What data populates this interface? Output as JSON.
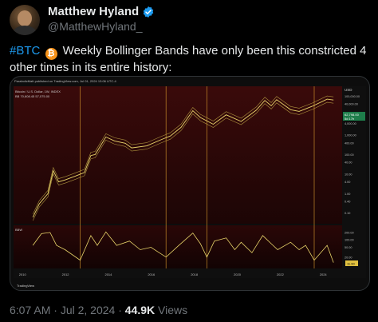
{
  "tweet": {
    "author_name": "Matthew Hyland",
    "handle": "@MatthewHyland_",
    "hashtag": "#BTC",
    "emoji_label": "₿",
    "text_line": " Weekly Bollinger Bands have only been this constricted 4 other times in its entire history:",
    "time": "6:07 AM",
    "sep1": " · ",
    "date": "Jul 2, 2024",
    "sep2": " · ",
    "views_count": "44.9K",
    "views_label": " Views",
    "verified_color": "#1d9bf0",
    "hashtag_color": "#1d9bf0"
  },
  "chart_data": {
    "type": "line",
    "header_text": "ParabolicMatt published on TradingView.com, Jul 01, 2024 13:06 UTC-4",
    "symbol": "Bitcoin / U.S. Dollar, 1W, INDEX",
    "bb_label": "BB 70,608.45 57,075.00",
    "price_tag": "62,798.00",
    "price_tag2": "5d 17h",
    "usd_label": "USD",
    "x_ticks": [
      "2010",
      "2012",
      "2014",
      "2016",
      "2018",
      "2020",
      "2022",
      "2024"
    ],
    "y_ticks": [
      "100,000.00",
      "40,000.00",
      "10,000.00",
      "4,000.00",
      "1,000.00",
      "400.00",
      "100.00",
      "40.00",
      "10.00",
      "4.00",
      "1.00",
      "0.40",
      "0.10"
    ],
    "lower_label": "BBW",
    "lower_y_ticks": [
      "200.00",
      "100.00",
      "50.00",
      "20.00"
    ],
    "lower_value_tag": "11.90",
    "brand": "TradingView",
    "constriction_years": [
      2012.7,
      2016.7,
      2018.6,
      2023.6
    ],
    "price_series": [
      {
        "x": 2010.5,
        "y": 0.06
      },
      {
        "x": 2010.8,
        "y": 0.3
      },
      {
        "x": 2011.2,
        "y": 1
      },
      {
        "x": 2011.45,
        "y": 15
      },
      {
        "x": 2011.7,
        "y": 4
      },
      {
        "x": 2012.0,
        "y": 5
      },
      {
        "x": 2012.5,
        "y": 8
      },
      {
        "x": 2012.9,
        "y": 12
      },
      {
        "x": 2013.2,
        "y": 90
      },
      {
        "x": 2013.4,
        "y": 100
      },
      {
        "x": 2013.9,
        "y": 800
      },
      {
        "x": 2014.3,
        "y": 500
      },
      {
        "x": 2014.8,
        "y": 380
      },
      {
        "x": 2015.1,
        "y": 220
      },
      {
        "x": 2015.8,
        "y": 280
      },
      {
        "x": 2016.5,
        "y": 600
      },
      {
        "x": 2016.9,
        "y": 900
      },
      {
        "x": 2017.4,
        "y": 2500
      },
      {
        "x": 2017.95,
        "y": 18000
      },
      {
        "x": 2018.3,
        "y": 8000
      },
      {
        "x": 2018.9,
        "y": 3600
      },
      {
        "x": 2019.5,
        "y": 11000
      },
      {
        "x": 2020.2,
        "y": 5000
      },
      {
        "x": 2020.9,
        "y": 19000
      },
      {
        "x": 2021.3,
        "y": 60000
      },
      {
        "x": 2021.6,
        "y": 32000
      },
      {
        "x": 2021.85,
        "y": 66000
      },
      {
        "x": 2022.5,
        "y": 20000
      },
      {
        "x": 2022.9,
        "y": 16500
      },
      {
        "x": 2023.5,
        "y": 30000
      },
      {
        "x": 2024.2,
        "y": 70000
      },
      {
        "x": 2024.5,
        "y": 62798
      }
    ],
    "bbw_series": [
      {
        "x": 2010.5,
        "y": 60
      },
      {
        "x": 2010.9,
        "y": 180
      },
      {
        "x": 2011.3,
        "y": 200
      },
      {
        "x": 2011.6,
        "y": 60
      },
      {
        "x": 2012.0,
        "y": 40
      },
      {
        "x": 2012.7,
        "y": 15
      },
      {
        "x": 2013.2,
        "y": 150
      },
      {
        "x": 2013.5,
        "y": 60
      },
      {
        "x": 2013.9,
        "y": 210
      },
      {
        "x": 2014.4,
        "y": 60
      },
      {
        "x": 2015.0,
        "y": 90
      },
      {
        "x": 2015.5,
        "y": 40
      },
      {
        "x": 2016.0,
        "y": 50
      },
      {
        "x": 2016.7,
        "y": 20
      },
      {
        "x": 2017.3,
        "y": 60
      },
      {
        "x": 2017.95,
        "y": 190
      },
      {
        "x": 2018.3,
        "y": 70
      },
      {
        "x": 2018.6,
        "y": 20
      },
      {
        "x": 2018.95,
        "y": 90
      },
      {
        "x": 2019.5,
        "y": 120
      },
      {
        "x": 2019.9,
        "y": 40
      },
      {
        "x": 2020.2,
        "y": 80
      },
      {
        "x": 2020.7,
        "y": 30
      },
      {
        "x": 2021.2,
        "y": 150
      },
      {
        "x": 2021.6,
        "y": 70
      },
      {
        "x": 2021.9,
        "y": 40
      },
      {
        "x": 2022.5,
        "y": 80
      },
      {
        "x": 2022.9,
        "y": 40
      },
      {
        "x": 2023.2,
        "y": 60
      },
      {
        "x": 2023.6,
        "y": 15
      },
      {
        "x": 2024.2,
        "y": 60
      },
      {
        "x": 2024.5,
        "y": 12
      }
    ],
    "colors": {
      "bg_top": "#3a0a0a",
      "bg_bottom": "#120303",
      "price": "#e8d46a",
      "band": "#d9c55a",
      "vline": "#e0a030",
      "bbw": "#e8d46a"
    }
  }
}
